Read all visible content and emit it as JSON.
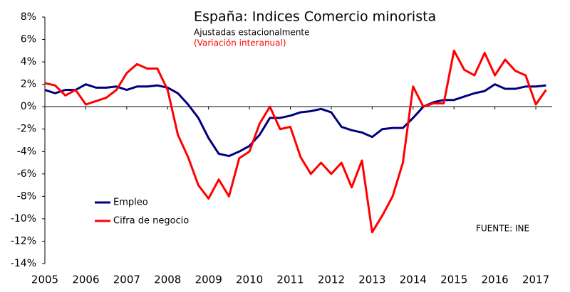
{
  "chart_data": {
    "type": "line",
    "title": "España: Indices Comercio minorista",
    "subtitle": "Ajustadas estacionalmente",
    "annotation": "(Variación interanual)",
    "source": "FUENTE: INE",
    "x": [
      2005.0,
      2005.25,
      2005.5,
      2005.75,
      2006.0,
      2006.25,
      2006.5,
      2006.75,
      2007.0,
      2007.25,
      2007.5,
      2007.75,
      2008.0,
      2008.25,
      2008.5,
      2008.75,
      2009.0,
      2009.25,
      2009.5,
      2009.75,
      2010.0,
      2010.25,
      2010.5,
      2010.75,
      2011.0,
      2011.25,
      2011.5,
      2011.75,
      2012.0,
      2012.25,
      2012.5,
      2012.75,
      2013.0,
      2013.25,
      2013.5,
      2013.75,
      2014.0,
      2014.25,
      2014.5,
      2014.75,
      2015.0,
      2015.25,
      2015.5,
      2015.75,
      2016.0,
      2016.25,
      2016.5,
      2016.75,
      2017.0,
      2017.25
    ],
    "series": [
      {
        "name": "Empleo",
        "color": "#00007f",
        "values": [
          1.5,
          1.2,
          1.5,
          1.5,
          2.0,
          1.7,
          1.7,
          1.8,
          1.5,
          1.8,
          1.8,
          1.9,
          1.7,
          1.2,
          0.2,
          -1.0,
          -2.8,
          -4.2,
          -4.4,
          -4.0,
          -3.5,
          -2.5,
          -1.0,
          -1.0,
          -0.8,
          -0.5,
          -0.4,
          -0.2,
          -0.5,
          -1.8,
          -2.1,
          -2.3,
          -2.7,
          -2.0,
          -1.9,
          -1.9,
          -1.0,
          0.0,
          0.4,
          0.6,
          0.6,
          0.9,
          1.2,
          1.4,
          2.0,
          1.6,
          1.6,
          1.8,
          1.8,
          1.9
        ]
      },
      {
        "name": "Cifra de negocio",
        "color": "#ff0000",
        "values": [
          2.1,
          1.9,
          1.0,
          1.5,
          0.2,
          0.5,
          0.8,
          1.5,
          3.0,
          3.8,
          3.4,
          3.4,
          1.5,
          -2.5,
          -4.5,
          -7.0,
          -8.2,
          -6.5,
          -8.0,
          -4.6,
          -4.0,
          -1.5,
          0.0,
          -2.0,
          -1.8,
          -4.5,
          -6.0,
          -5.0,
          -6.0,
          -5.0,
          -7.2,
          -4.8,
          -11.2,
          -9.7,
          -8.0,
          -5.0,
          1.8,
          0.0,
          0.3,
          0.3,
          5.0,
          3.3,
          2.8,
          4.8,
          2.8,
          4.2,
          3.2,
          2.8,
          0.2,
          1.5
        ]
      }
    ],
    "xlim": [
      2005,
      2017.4
    ],
    "xticks": [
      2005,
      2006,
      2007,
      2008,
      2009,
      2010,
      2011,
      2012,
      2013,
      2014,
      2015,
      2016,
      2017
    ],
    "ylim": [
      -14,
      8
    ],
    "yticks": [
      {
        "value": 8,
        "label": "8%"
      },
      {
        "value": 6,
        "label": "6%"
      },
      {
        "value": 4,
        "label": "4%"
      },
      {
        "value": 2,
        "label": "2%"
      },
      {
        "value": 0,
        "label": "0%"
      },
      {
        "value": -2,
        "label": "-2%"
      },
      {
        "value": -4,
        "label": "-4%"
      },
      {
        "value": -6,
        "label": "-6%"
      },
      {
        "value": -8,
        "label": "-8%"
      },
      {
        "value": -10,
        "label": "-10%"
      },
      {
        "value": -12,
        "label": "-12%"
      },
      {
        "value": -14,
        "label": "-14%"
      }
    ],
    "grid": false,
    "legend": "lower-left"
  }
}
